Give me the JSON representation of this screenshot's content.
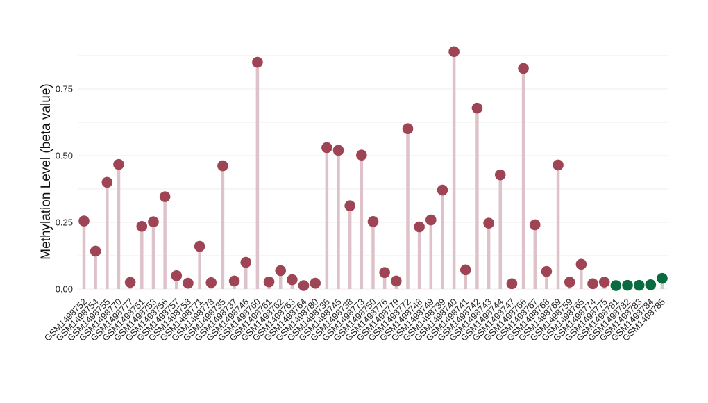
{
  "chart_data": {
    "type": "lollipop",
    "ylabel": "Methylation Level (beta value)",
    "ylim": [
      0,
      0.9
    ],
    "yticks": [
      0.0,
      0.25,
      0.5,
      0.75
    ],
    "ytick_labels": [
      "0.00",
      "0.25",
      "0.50",
      "0.75"
    ],
    "grid": true,
    "categories": [
      "GSM1498752",
      "GSM1498754",
      "GSM1498755",
      "GSM1498770",
      "GSM1498777",
      "GSM1498751",
      "GSM1498753",
      "GSM1498756",
      "GSM1498757",
      "GSM1498758",
      "GSM1498771",
      "GSM1498778",
      "GSM1498735",
      "GSM1498737",
      "GSM1498746",
      "GSM1498760",
      "GSM1498761",
      "GSM1498762",
      "GSM1498763",
      "GSM1498764",
      "GSM1498780",
      "GSM1498736",
      "GSM1498745",
      "GSM1498738",
      "GSM1498773",
      "GSM1498750",
      "GSM1498776",
      "GSM1498779",
      "GSM1498772",
      "GSM1498748",
      "GSM1498749",
      "GSM1498739",
      "GSM1498740",
      "GSM1498741",
      "GSM1498742",
      "GSM1498743",
      "GSM1498744",
      "GSM1498747",
      "GSM1498766",
      "GSM1498767",
      "GSM1498768",
      "GSM1498769",
      "GSM1498759",
      "GSM1498765",
      "GSM1498774",
      "GSM1498775",
      "GSM1498781",
      "GSM1498782",
      "GSM1498783",
      "GSM1498784",
      "GSM1498785"
    ],
    "values": [
      0.255,
      0.142,
      0.4,
      0.467,
      0.025,
      0.235,
      0.252,
      0.346,
      0.05,
      0.022,
      0.16,
      0.024,
      0.462,
      0.03,
      0.1,
      0.85,
      0.027,
      0.069,
      0.035,
      0.013,
      0.022,
      0.53,
      0.52,
      0.312,
      0.502,
      0.253,
      0.062,
      0.03,
      0.601,
      0.233,
      0.259,
      0.371,
      0.89,
      0.072,
      0.678,
      0.247,
      0.428,
      0.02,
      0.827,
      0.241,
      0.066,
      0.465,
      0.026,
      0.093,
      0.02,
      0.026,
      0.013,
      0.014,
      0.014,
      0.016,
      0.04
    ],
    "groups": [
      "a",
      "a",
      "a",
      "a",
      "a",
      "a",
      "a",
      "a",
      "a",
      "a",
      "a",
      "a",
      "a",
      "a",
      "a",
      "a",
      "a",
      "a",
      "a",
      "a",
      "a",
      "a",
      "a",
      "a",
      "a",
      "a",
      "a",
      "a",
      "a",
      "a",
      "a",
      "a",
      "a",
      "a",
      "a",
      "a",
      "a",
      "a",
      "a",
      "a",
      "a",
      "a",
      "a",
      "a",
      "a",
      "a",
      "b",
      "b",
      "b",
      "b",
      "b"
    ],
    "colors": {
      "a_point": "#9e4454",
      "a_stem": "#ddc3c9",
      "b_point": "#0b6b40",
      "b_stem": "#c3d6cb",
      "grid": "#eeeeee"
    }
  }
}
